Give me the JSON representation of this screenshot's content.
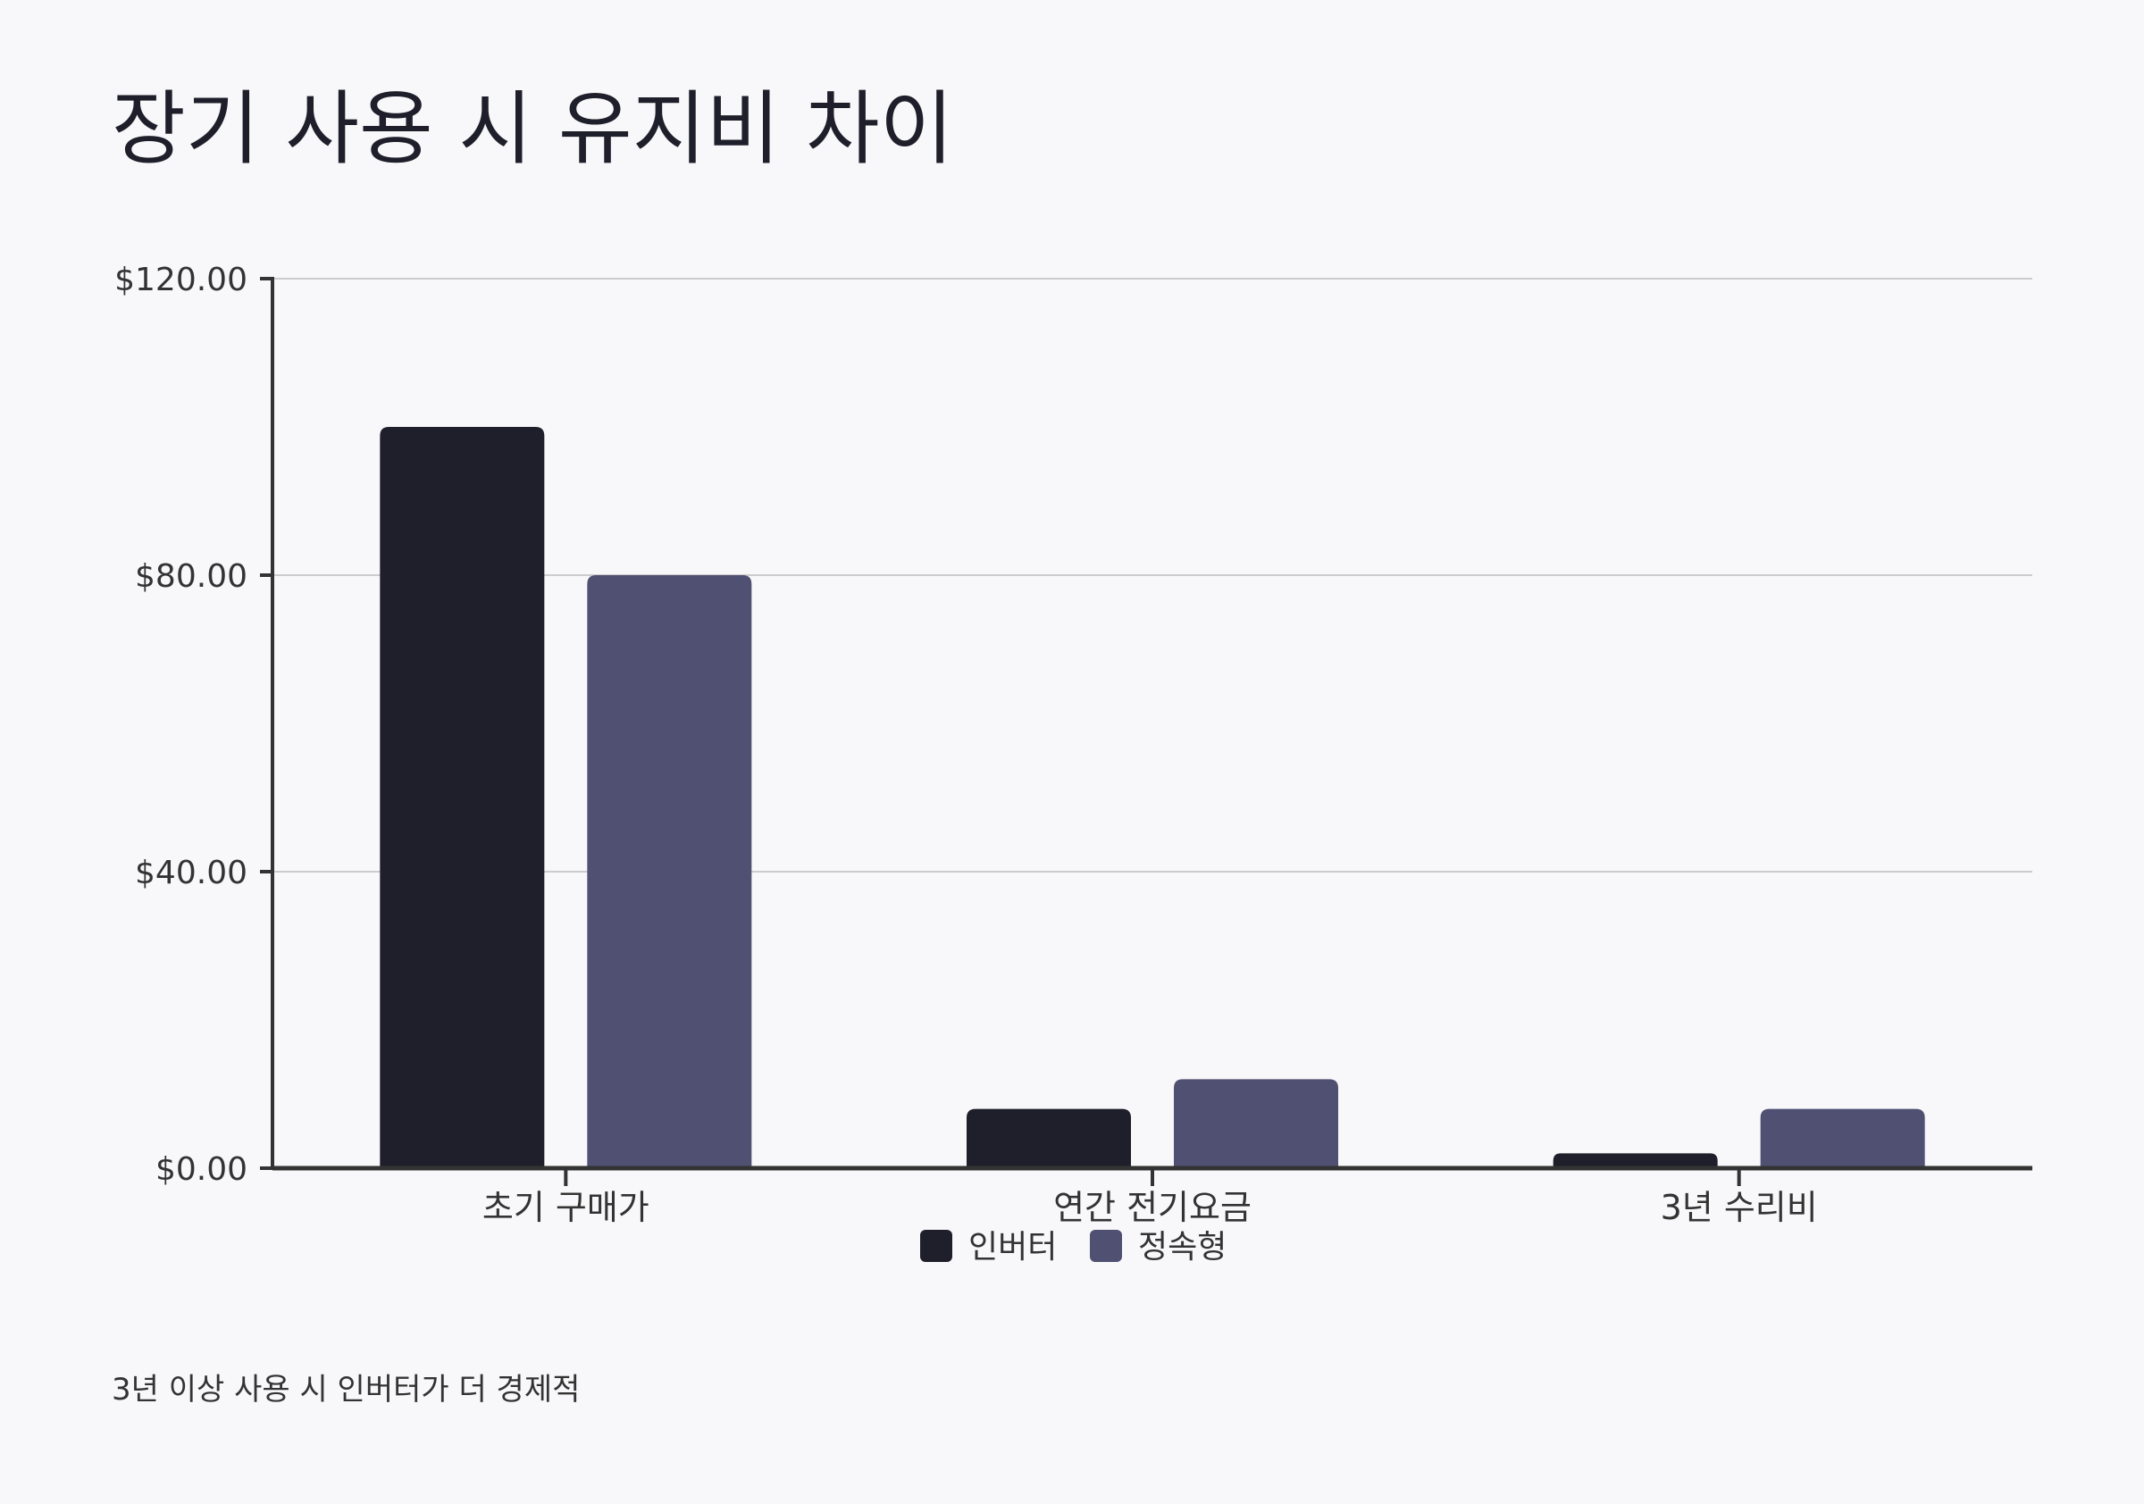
{
  "title": "장기 사용 시 유지비 차이",
  "footnote": "3년 이상 사용 시 인버터가 더 경제적",
  "colors": {
    "background": "#f8f8fa",
    "inverter": "#1f1f2b",
    "constant": "#4f5072",
    "axis": "#333333",
    "grid": "#cccccc"
  },
  "chart_data": {
    "type": "bar",
    "categories": [
      "초기 구매가",
      "연간 전기요금",
      "3년 수리비"
    ],
    "series": [
      {
        "name": "인버터",
        "values": [
          100,
          8,
          2
        ]
      },
      {
        "name": "정속형",
        "values": [
          80,
          12,
          8
        ]
      }
    ],
    "y_ticks": [
      "$0.00",
      "$40.00",
      "$80.00",
      "$120.00"
    ],
    "y_tick_values": [
      0,
      40,
      80,
      120
    ],
    "ylim": [
      0,
      120
    ],
    "grid": true,
    "legend_position": "bottom-center"
  }
}
